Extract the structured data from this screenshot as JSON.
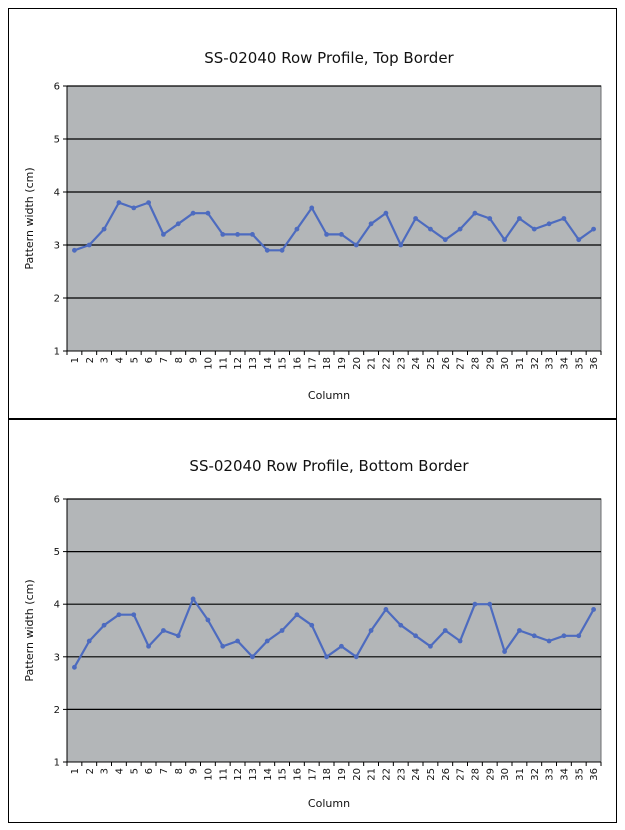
{
  "colors": {
    "plot_bg": "#b3b6b8",
    "grid": "#000000",
    "series": "#4d6bbf"
  },
  "chart_data": [
    {
      "type": "line",
      "title": "SS-02040 Row Profile, Top Border",
      "xlabel": "Column",
      "ylabel": "Pattern width (cm)",
      "ylim": [
        1,
        6
      ],
      "yticks": [
        1,
        2,
        3,
        4,
        5,
        6
      ],
      "grid": true,
      "categories": [
        "1",
        "2",
        "3",
        "4",
        "5",
        "6",
        "7",
        "8",
        "9",
        "10",
        "11",
        "12",
        "13",
        "14",
        "15",
        "16",
        "17",
        "18",
        "19",
        "20",
        "21",
        "22",
        "23",
        "24",
        "25",
        "26",
        "27",
        "28",
        "29",
        "30",
        "31",
        "32",
        "33",
        "34",
        "35",
        "36"
      ],
      "values": [
        2.9,
        3.0,
        3.3,
        3.8,
        3.7,
        3.8,
        3.2,
        3.4,
        3.6,
        3.6,
        3.2,
        3.2,
        3.2,
        2.9,
        2.9,
        3.3,
        3.7,
        3.2,
        3.2,
        3.0,
        3.4,
        3.6,
        3.0,
        3.5,
        3.3,
        3.1,
        3.3,
        3.6,
        3.5,
        3.1,
        3.5,
        3.3,
        3.4,
        3.5,
        3.1,
        3.3
      ]
    },
    {
      "type": "line",
      "title": "SS-02040 Row Profile, Bottom Border",
      "xlabel": "Column",
      "ylabel": "Pattern width (cm)",
      "ylim": [
        1,
        6
      ],
      "yticks": [
        1,
        2,
        3,
        4,
        5,
        6
      ],
      "grid": true,
      "categories": [
        "1",
        "2",
        "3",
        "4",
        "5",
        "6",
        "7",
        "8",
        "9",
        "10",
        "11",
        "12",
        "13",
        "14",
        "15",
        "16",
        "17",
        "18",
        "19",
        "20",
        "21",
        "22",
        "23",
        "24",
        "25",
        "26",
        "27",
        "28",
        "29",
        "30",
        "31",
        "32",
        "33",
        "34",
        "35",
        "36"
      ],
      "values": [
        2.8,
        3.3,
        3.6,
        3.8,
        3.8,
        3.2,
        3.5,
        3.4,
        4.1,
        3.7,
        3.2,
        3.3,
        3.0,
        3.3,
        3.5,
        3.8,
        3.6,
        3.0,
        3.2,
        3.0,
        3.5,
        3.9,
        3.6,
        3.4,
        3.2,
        3.5,
        3.3,
        4.0,
        4.0,
        3.1,
        3.5,
        3.4,
        3.3,
        3.4,
        3.4,
        3.9
      ]
    }
  ]
}
